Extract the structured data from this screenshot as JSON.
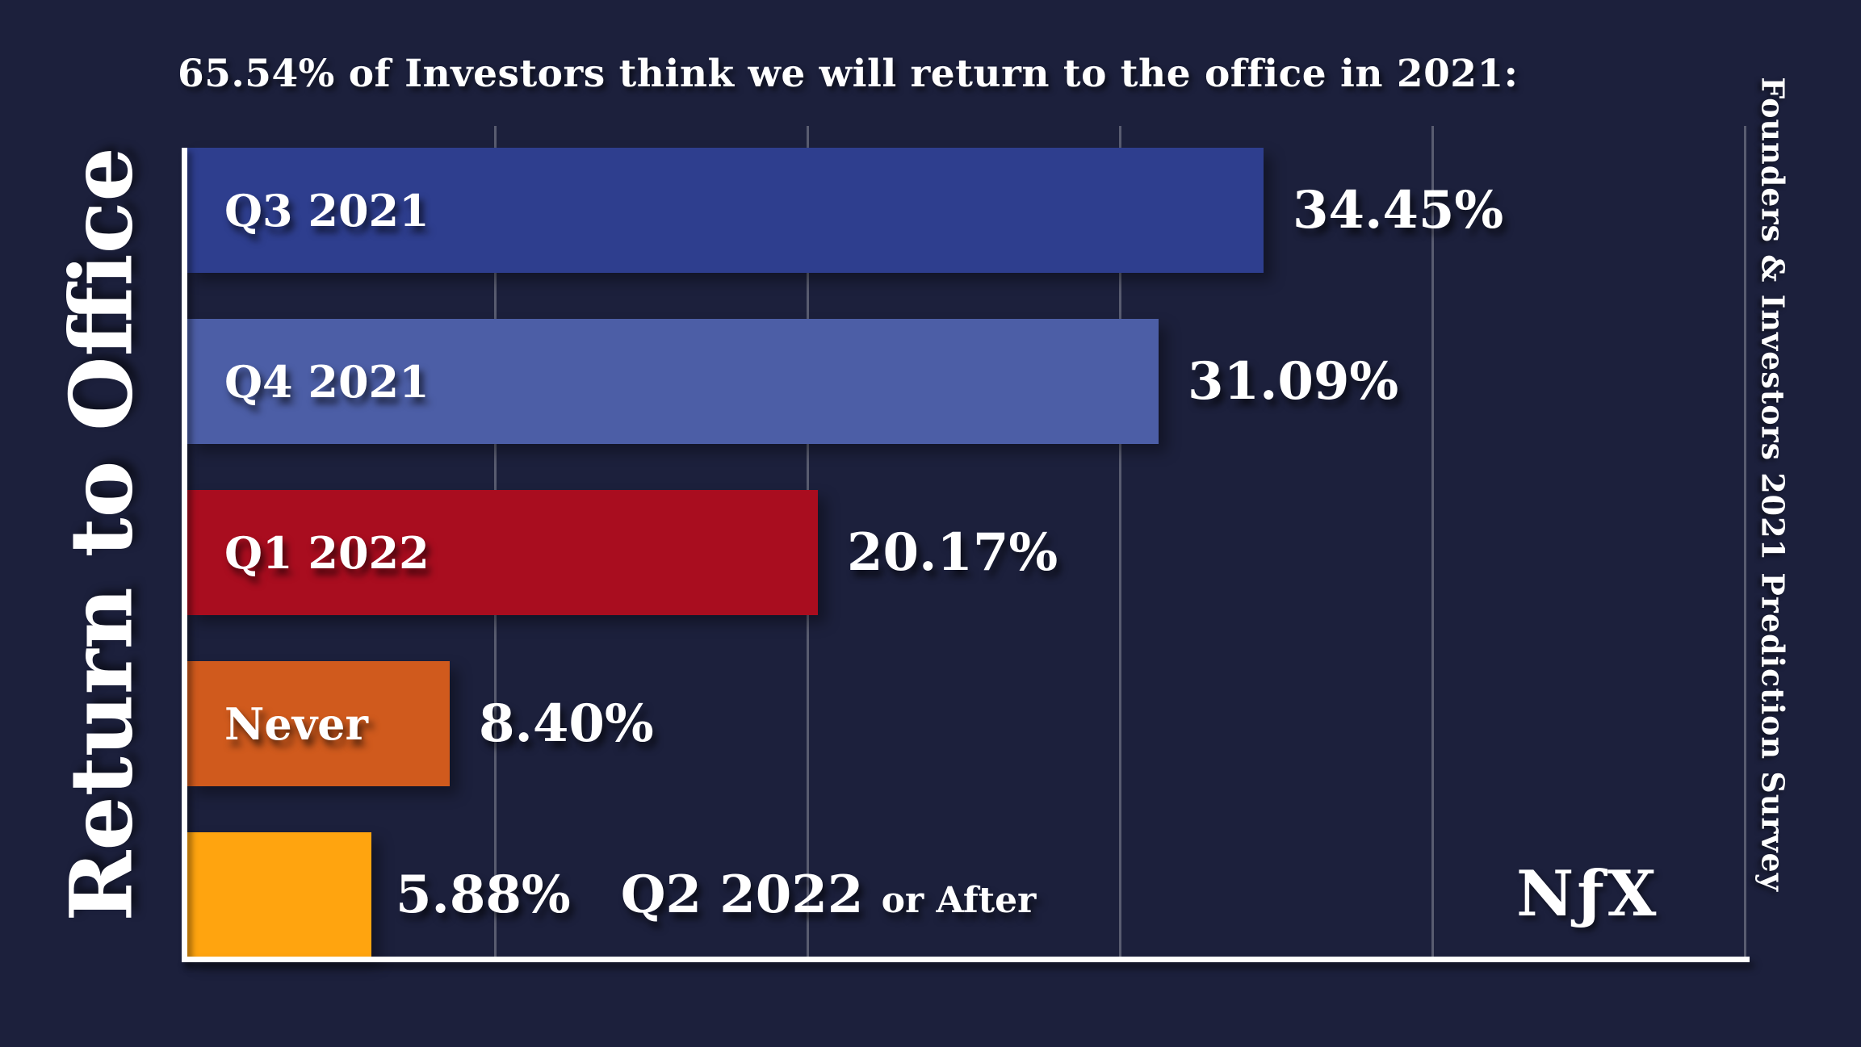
{
  "palette": {
    "background": "#1c203c",
    "axis": "#ffffff",
    "gridline": "rgba(255,255,255,0.27)",
    "text": "#ffffff"
  },
  "chart_data": {
    "type": "bar",
    "orientation": "horizontal",
    "title": "65.54% of Investors think we will return to the office in 2021:",
    "ylabel": "Return to Office",
    "xlabel": "",
    "axis_max_pct": 50,
    "gridlines_pct": [
      10,
      20,
      30,
      40,
      50
    ],
    "grid": true,
    "legend": false,
    "categories": [
      "Q3 2021",
      "Q4 2021",
      "Q1 2022",
      "Never",
      "Q2 2022 or After"
    ],
    "values": [
      34.45,
      31.09,
      20.17,
      8.4,
      5.88
    ],
    "bars": [
      {
        "category": "Q3 2021",
        "value": 34.45,
        "value_label": "34.45%",
        "color": "#2e3e8e",
        "label_position": "inside"
      },
      {
        "category": "Q4 2021",
        "value": 31.09,
        "value_label": "31.09%",
        "color": "#4c5ea6",
        "label_position": "inside"
      },
      {
        "category": "Q1 2022",
        "value": 20.17,
        "value_label": "20.17%",
        "color": "#a90d1f",
        "label_position": "inside"
      },
      {
        "category": "Never",
        "value": 8.4,
        "value_label": "8.40%",
        "color": "#d05a1d",
        "label_position": "inside"
      },
      {
        "category": "Q2 2022 or After",
        "category_main": "Q2 2022",
        "category_suffix": "or After",
        "value": 5.88,
        "value_label": "5.88%",
        "color": "#ffa40f",
        "label_position": "outside"
      }
    ],
    "source_note": "Founders & Investors 2021 Prediction Survey",
    "logo": "NƒX"
  }
}
